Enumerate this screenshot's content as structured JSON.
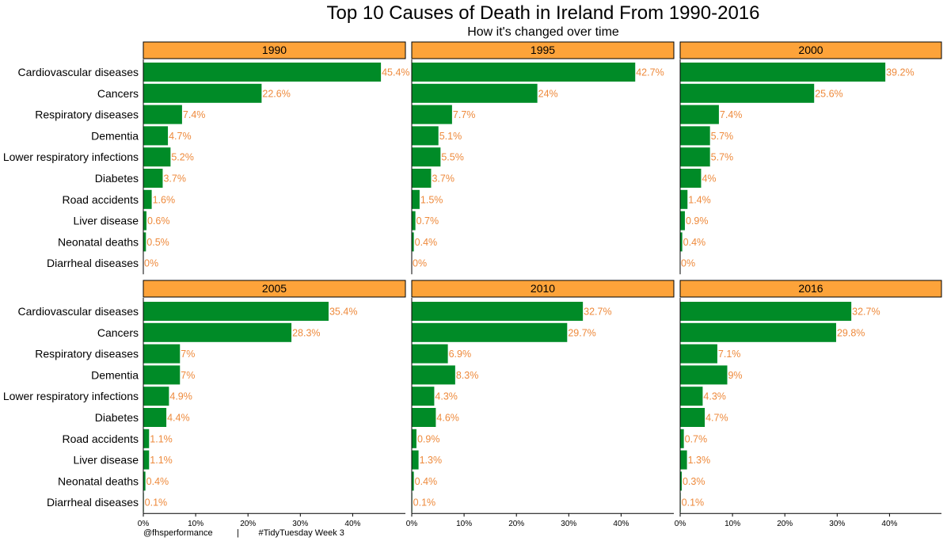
{
  "chart_data": {
    "type": "bar",
    "orientation": "horizontal",
    "title": "Top 10 Causes of Death in Ireland From 1990-2016",
    "subtitle": "How it's changed over time",
    "caption": "@fhsperformance          |        #TidyTuesday Week 3",
    "categories": [
      "Cardiovascular diseases",
      "Cancers",
      "Respiratory diseases",
      "Dementia",
      "Lower respiratory infections",
      "Diabetes",
      "Road accidents",
      "Liver disease",
      "Neonatal deaths",
      "Diarrheal diseases"
    ],
    "x_ticks": [
      "0%",
      "10%",
      "20%",
      "30%",
      "40%"
    ],
    "xlim": [
      0,
      50
    ],
    "colors": {
      "bar": "#008b27",
      "label": "#ee8a3c",
      "strip": "#fda33a"
    },
    "panels": [
      {
        "year": "1990",
        "values": [
          45.4,
          22.6,
          7.4,
          4.7,
          5.2,
          3.7,
          1.6,
          0.6,
          0.5,
          0.0
        ],
        "labels": [
          "45.4%",
          "22.6%",
          "7.4%",
          "4.7%",
          "5.2%",
          "3.7%",
          "1.6%",
          "0.6%",
          "0.5%",
          "0%"
        ]
      },
      {
        "year": "1995",
        "values": [
          42.7,
          24.0,
          7.7,
          5.1,
          5.5,
          3.7,
          1.5,
          0.7,
          0.4,
          0.0
        ],
        "labels": [
          "42.7%",
          "24%",
          "7.7%",
          "5.1%",
          "5.5%",
          "3.7%",
          "1.5%",
          "0.7%",
          "0.4%",
          "0%"
        ]
      },
      {
        "year": "2000",
        "values": [
          39.2,
          25.6,
          7.4,
          5.7,
          5.7,
          4.0,
          1.4,
          0.9,
          0.4,
          0.0
        ],
        "labels": [
          "39.2%",
          "25.6%",
          "7.4%",
          "5.7%",
          "5.7%",
          "4%",
          "1.4%",
          "0.9%",
          "0.4%",
          "0%"
        ]
      },
      {
        "year": "2005",
        "values": [
          35.4,
          28.3,
          7.0,
          7.0,
          4.9,
          4.4,
          1.1,
          1.1,
          0.4,
          0.1
        ],
        "labels": [
          "35.4%",
          "28.3%",
          "7%",
          "7%",
          "4.9%",
          "4.4%",
          "1.1%",
          "1.1%",
          "0.4%",
          "0.1%"
        ]
      },
      {
        "year": "2010",
        "values": [
          32.7,
          29.7,
          6.9,
          8.3,
          4.3,
          4.6,
          0.9,
          1.3,
          0.4,
          0.1
        ],
        "labels": [
          "32.7%",
          "29.7%",
          "6.9%",
          "8.3%",
          "4.3%",
          "4.6%",
          "0.9%",
          "1.3%",
          "0.4%",
          "0.1%"
        ]
      },
      {
        "year": "2016",
        "values": [
          32.7,
          29.8,
          7.1,
          9.0,
          4.3,
          4.7,
          0.7,
          1.3,
          0.3,
          0.1
        ],
        "labels": [
          "32.7%",
          "29.8%",
          "7.1%",
          "9%",
          "4.3%",
          "4.7%",
          "0.7%",
          "1.3%",
          "0.3%",
          "0.1%"
        ]
      }
    ]
  }
}
